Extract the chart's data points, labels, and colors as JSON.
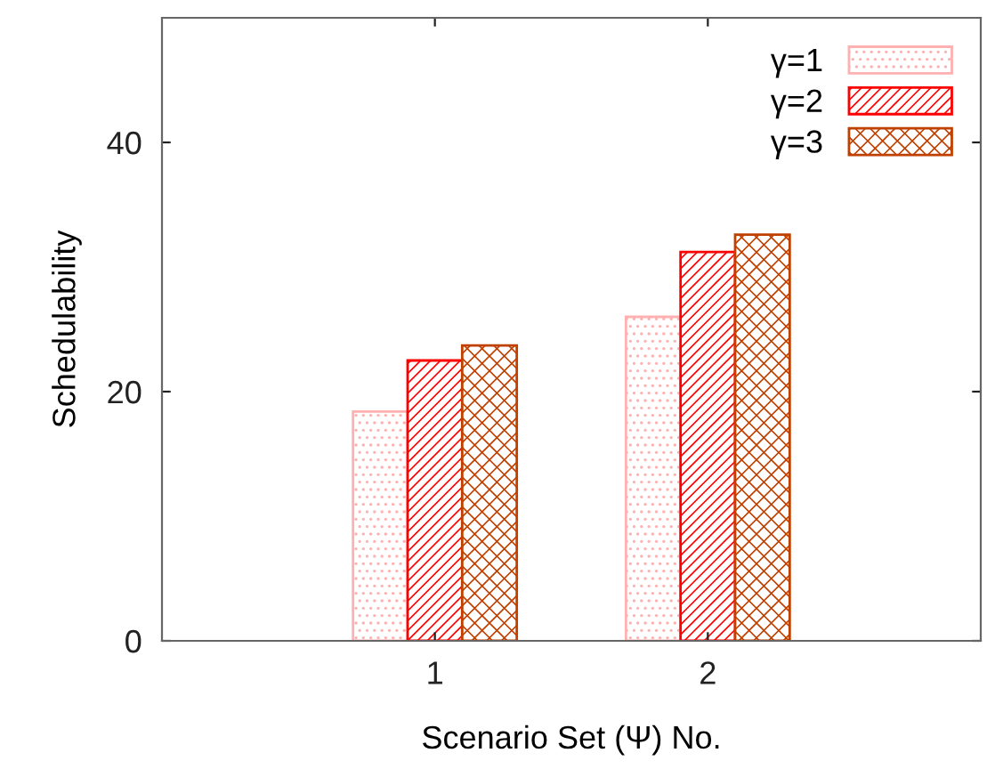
{
  "chart_data": {
    "type": "bar",
    "xlabel": "Scenario Set (Ψ) No.",
    "ylabel": "Schedulability",
    "categories": [
      "1",
      "2"
    ],
    "series": [
      {
        "name": "γ=1",
        "color": "#ffb0b0",
        "values": [
          18.4,
          26.0
        ]
      },
      {
        "name": "γ=2",
        "color": "#ff0000",
        "values": [
          22.5,
          31.2
        ]
      },
      {
        "name": "γ=3",
        "color": "#c04000",
        "values": [
          23.7,
          32.6
        ]
      }
    ],
    "ylim": [
      0,
      50
    ],
    "yticks": [
      0,
      20,
      40
    ],
    "legend": "top right"
  }
}
